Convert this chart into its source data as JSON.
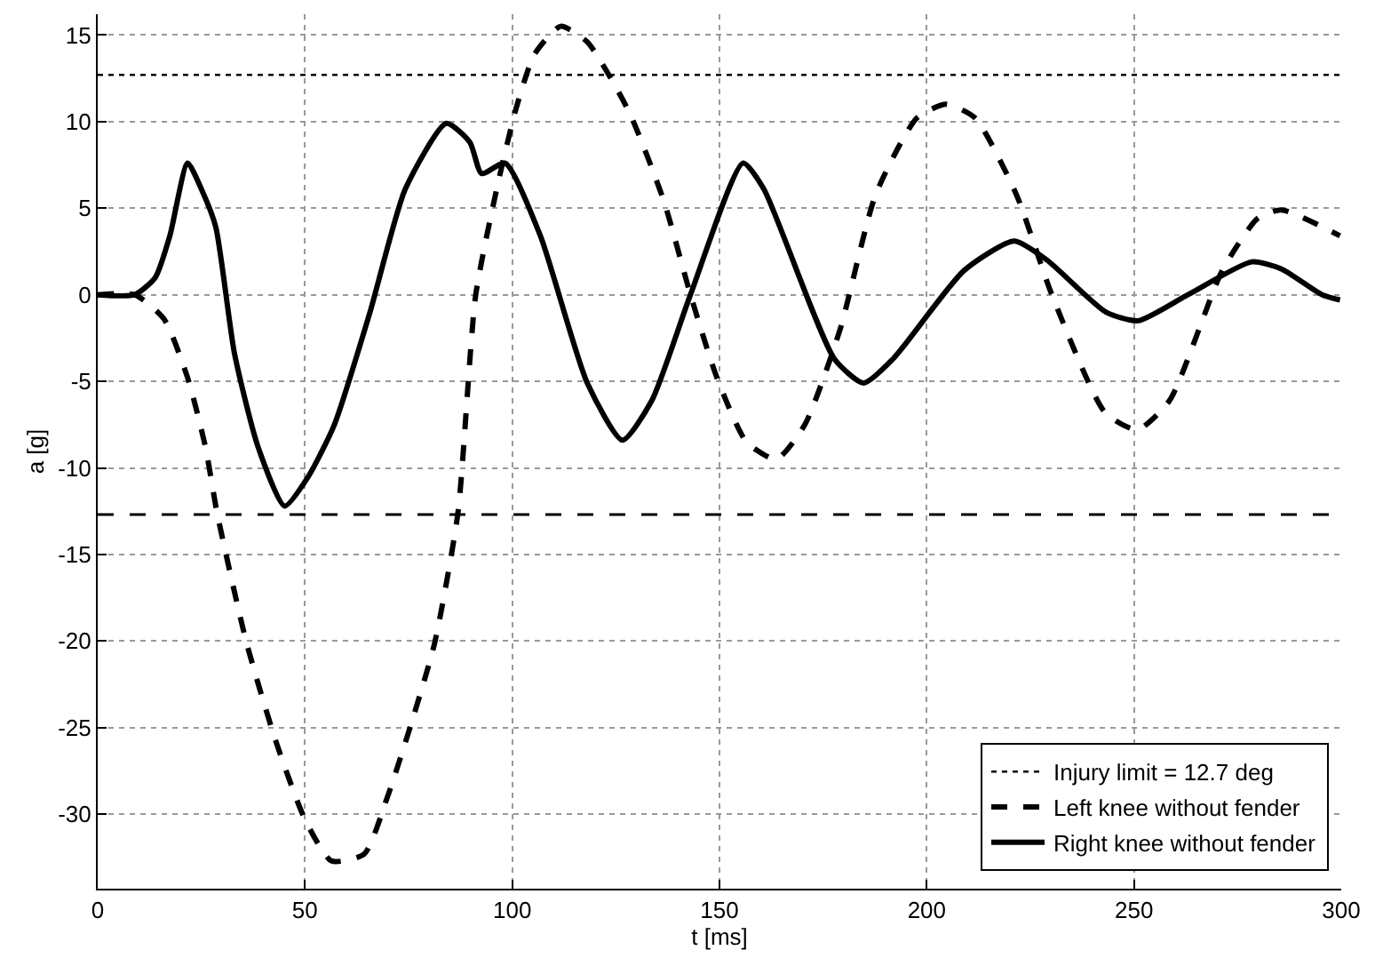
{
  "chart_data": {
    "type": "line",
    "xlabel": "t [ms]",
    "ylabel": "a [g]",
    "xlim": [
      0,
      300
    ],
    "xticks": [
      0,
      50,
      100,
      150,
      200,
      250,
      300
    ],
    "ylim": [
      -34.3,
      16.2
    ],
    "yticks": [
      -30,
      -25,
      -20,
      -15,
      -10,
      -5,
      0,
      5,
      10,
      15
    ],
    "grid": true,
    "legend": "bottom right",
    "marker": "none",
    "ref_lines": [
      {
        "axis": "y",
        "value": 12.7,
        "label": "Injury limit = 12.7 deg",
        "color": "#000000",
        "line_style": "dotted"
      },
      {
        "axis": "y",
        "value": -12.7,
        "label": null,
        "color": "#000000",
        "line_style": "dashed"
      }
    ],
    "series": [
      {
        "name": "Left knee without fender",
        "color": "#000000",
        "line_style": "dashed",
        "x": [
          0,
          8.9,
          16,
          21.7,
          26,
          28.8,
          35.9,
          43,
          50,
          56.4,
          64.3,
          69.9,
          75.6,
          81.3,
          86.9,
          91.2,
          96.9,
          101.1,
          105.4,
          111.7,
          118.1,
          128.1,
          136.6,
          143,
          149.4,
          156.5,
          163.7,
          170.6,
          179.1,
          187.7,
          197.6,
          204.7,
          211.7,
          221.6,
          230.2,
          243,
          250.8,
          258.6,
          271.3,
          279.8,
          285.5,
          299.7
        ],
        "values": [
          0,
          0,
          -1.4,
          -4.8,
          -8.8,
          -12.6,
          -20.1,
          -25.8,
          -30.3,
          -32.7,
          -32.3,
          -29.0,
          -24.8,
          -20.1,
          -12.6,
          0,
          6.8,
          10.9,
          13.9,
          15.5,
          14.6,
          10.6,
          5.4,
          0,
          -4.8,
          -8.5,
          -9.5,
          -7.5,
          -2.0,
          5.8,
          10.2,
          11.0,
          10.2,
          5.8,
          0,
          -6.8,
          -7.8,
          -6.1,
          1.4,
          4.4,
          4.9,
          3.4
        ]
      },
      {
        "name": "Right knee without fender",
        "color": "#000000",
        "line_style": "solid",
        "x": [
          0,
          8.9,
          13.9,
          17.4,
          21.7,
          25.2,
          28.5,
          33.0,
          38.7,
          45.1,
          50.8,
          57.1,
          65.7,
          74.2,
          84.1,
          89.8,
          92.6,
          98.3,
          106.8,
          118.1,
          126.6,
          133.7,
          143.0,
          155.7,
          160.7,
          177.7,
          184.8,
          191.9,
          209,
          221.1,
          229,
          243.2,
          251,
          263,
          278.4,
          285.5,
          295.4,
          299.7
        ],
        "values": [
          0,
          0,
          1.0,
          3.4,
          7.6,
          6.0,
          3.9,
          -3.4,
          -8.8,
          -12.2,
          -10.5,
          -7.5,
          -1.0,
          6.1,
          9.9,
          8.8,
          7.0,
          7.6,
          3.4,
          -5.1,
          -8.4,
          -6.1,
          0,
          7.6,
          6.1,
          -3.7,
          -5.1,
          -3.7,
          1.4,
          3.1,
          2.0,
          -1.0,
          -1.5,
          0,
          1.9,
          1.5,
          0,
          -0.3
        ]
      }
    ]
  }
}
